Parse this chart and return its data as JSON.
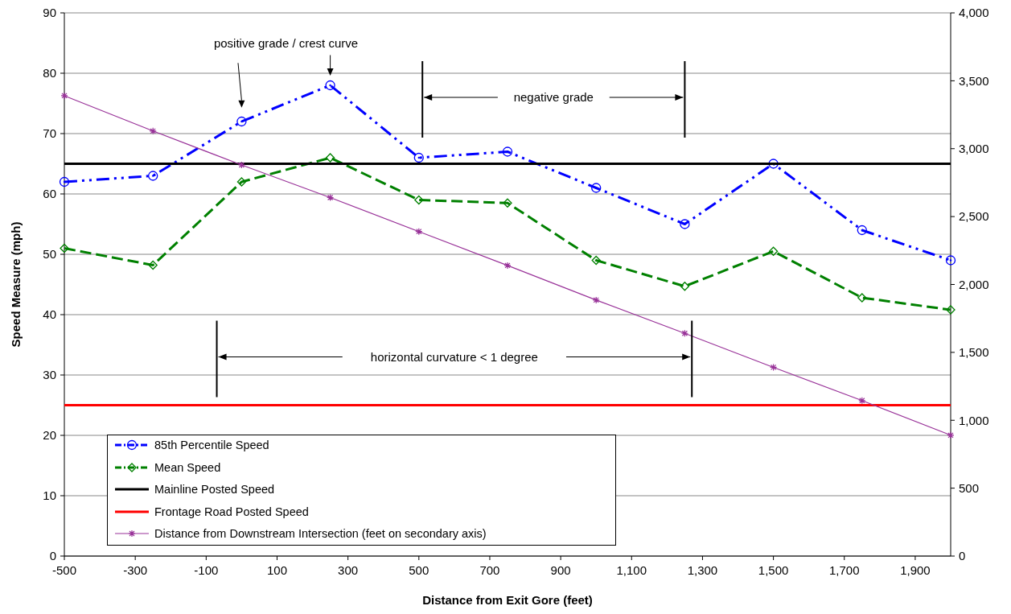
{
  "chart_data": {
    "type": "line",
    "xlabel": "Distance from Exit Gore (feet)",
    "ylabel": "Speed Measure (mph)",
    "x": [
      -500,
      -250,
      0,
      250,
      500,
      750,
      1000,
      1250,
      1500,
      1750,
      2000
    ],
    "xlim": [
      -500,
      2000
    ],
    "xticks": [
      -500,
      -300,
      -100,
      100,
      300,
      500,
      700,
      900,
      {
        "value": 1100,
        "label": "1,100"
      },
      {
        "value": 1300,
        "label": "1,300"
      },
      {
        "value": 1500,
        "label": "1,500"
      },
      {
        "value": 1700,
        "label": "1,700"
      },
      {
        "value": 1900,
        "label": "1,900"
      }
    ],
    "ylim": [
      0,
      90
    ],
    "yticks": [
      0,
      10,
      20,
      30,
      40,
      50,
      60,
      70,
      80,
      90
    ],
    "y2lim": [
      0,
      4000
    ],
    "y2ticks": [
      0,
      500,
      {
        "value": 1000,
        "label": "1,000"
      },
      {
        "value": 1500,
        "label": "1,500"
      },
      {
        "value": 2000,
        "label": "2,000"
      },
      {
        "value": 2500,
        "label": "2,500"
      },
      {
        "value": 3000,
        "label": "3,000"
      },
      {
        "value": 3500,
        "label": "3,500"
      },
      {
        "value": 4000,
        "label": "4,000"
      }
    ],
    "grid": "y",
    "legend": "bottom left",
    "series": [
      {
        "name": "85th Percentile Speed",
        "color": "#0000ff",
        "marker": "circle",
        "line_style": "dashed",
        "values": [
          62,
          63,
          72,
          78,
          66,
          67,
          61,
          55,
          65,
          54,
          49
        ]
      },
      {
        "name": "Mean Speed",
        "color": "#008000",
        "marker": "diamond",
        "line_style": "dashed",
        "values": [
          51,
          48.2,
          62,
          66,
          59,
          58.5,
          49,
          44.7,
          50.5,
          42.8,
          40.8
        ]
      },
      {
        "name": "Mainline Posted Speed",
        "color": "#000000",
        "marker": "none",
        "line_style": "solid",
        "values": [
          65,
          65,
          65,
          65,
          65,
          65,
          65,
          65,
          65,
          65,
          65
        ]
      },
      {
        "name": "Frontage Road Posted Speed",
        "color": "#ff0000",
        "marker": "none",
        "line_style": "solid",
        "values": [
          25,
          25,
          25,
          25,
          25,
          25,
          25,
          25,
          25,
          25,
          25
        ]
      },
      {
        "name": "Distance from Downstream Intersection (feet on secondary axis)",
        "color": "#993399",
        "marker": "cross",
        "line_style": "solid",
        "axis": "y2",
        "values": [
          3390,
          3130,
          2880,
          2640,
          2390,
          2140,
          1885,
          1640,
          1390,
          1145,
          890
        ]
      }
    ],
    "annotations": [
      "positive grade / crest curve",
      "negative grade",
      "horizontal curvature < 1 degree"
    ]
  }
}
